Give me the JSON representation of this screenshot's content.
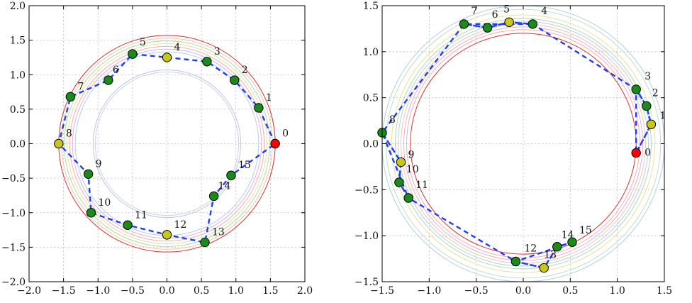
{
  "chart_data": [
    {
      "type": "scatter",
      "title": "",
      "xlabel": "",
      "ylabel": "",
      "xlim": [
        -2.0,
        2.0
      ],
      "ylim": [
        -2.0,
        2.0
      ],
      "xticks": [
        "−2.0",
        "−1.5",
        "−1.0",
        "−0.5",
        "0.0",
        "0.5",
        "1.0",
        "1.5",
        "2.0"
      ],
      "yticks": [
        "−2.0",
        "−1.5",
        "−1.0",
        "−0.5",
        "0.0",
        "0.5",
        "1.0",
        "1.5",
        "2.0"
      ],
      "grid": true,
      "colors": {
        "start": "#ff0000",
        "key": "#c8c81a",
        "normal": "#1a8a1a",
        "path": "#1f3df2"
      },
      "reference_circles": [
        {
          "radius": 1.57,
          "color": "#e03030"
        },
        {
          "radius": 1.53,
          "color": "#f2c8a0"
        },
        {
          "radius": 1.49,
          "color": "#b0d8b0"
        },
        {
          "radius": 1.45,
          "color": "#e8e0a0"
        },
        {
          "radius": 1.41,
          "color": "#f0b0b0"
        },
        {
          "radius": 1.37,
          "color": "#e0b0e0"
        },
        {
          "radius": 1.33,
          "color": "#b0d0f0"
        },
        {
          "radius": 1.07,
          "color": "#b8c8e0"
        },
        {
          "radius": 1.04,
          "color": "#c8d4e8"
        }
      ],
      "points": [
        {
          "label": "0",
          "x": 1.57,
          "y": 0.0,
          "kind": "start"
        },
        {
          "label": "1",
          "x": 1.33,
          "y": 0.52,
          "kind": "normal"
        },
        {
          "label": "2",
          "x": 0.98,
          "y": 0.92,
          "kind": "normal"
        },
        {
          "label": "3",
          "x": 0.58,
          "y": 1.19,
          "kind": "normal"
        },
        {
          "label": "4",
          "x": 0.0,
          "y": 1.25,
          "kind": "key"
        },
        {
          "label": "5",
          "x": -0.5,
          "y": 1.3,
          "kind": "normal"
        },
        {
          "label": "6",
          "x": -0.85,
          "y": 0.92,
          "kind": "normal"
        },
        {
          "label": "7",
          "x": -1.4,
          "y": 0.68,
          "kind": "normal"
        },
        {
          "label": "8",
          "x": -1.57,
          "y": 0.0,
          "kind": "key"
        },
        {
          "label": "9",
          "x": -1.14,
          "y": -0.44,
          "kind": "normal"
        },
        {
          "label": "10",
          "x": -1.1,
          "y": -1.0,
          "kind": "normal"
        },
        {
          "label": "11",
          "x": -0.57,
          "y": -1.18,
          "kind": "normal"
        },
        {
          "label": "12",
          "x": 0.0,
          "y": -1.32,
          "kind": "key"
        },
        {
          "label": "13",
          "x": 0.55,
          "y": -1.43,
          "kind": "normal"
        },
        {
          "label": "14",
          "x": 0.68,
          "y": -0.76,
          "kind": "normal"
        },
        {
          "label": "15",
          "x": 0.93,
          "y": -0.46,
          "kind": "normal"
        }
      ],
      "path_order": [
        "0",
        "1",
        "2",
        "3",
        "4",
        "5",
        "6",
        "7",
        "8",
        "9",
        "10",
        "11",
        "12",
        "13",
        "14",
        "15",
        "0"
      ]
    },
    {
      "type": "scatter",
      "title": "",
      "xlabel": "",
      "ylabel": "",
      "xlim": [
        -1.5,
        1.5
      ],
      "ylim": [
        -1.5,
        1.5
      ],
      "xticks": [
        "−1.5",
        "−1.0",
        "−0.5",
        "0.0",
        "0.5",
        "1.0",
        "1.5"
      ],
      "yticks": [
        "−1.5",
        "−1.0",
        "−0.5",
        "0.0",
        "0.5",
        "1.0",
        "1.5"
      ],
      "grid": true,
      "colors": {
        "start": "#ff0000",
        "key": "#c8c81a",
        "normal": "#1a8a1a",
        "path": "#1f3df2"
      },
      "reference_circles": [
        {
          "radius": 1.2,
          "color": "#e03030"
        },
        {
          "radius": 1.24,
          "color": "#f0b0b0"
        },
        {
          "radius": 1.27,
          "color": "#e0b0e0"
        },
        {
          "radius": 1.3,
          "color": "#f2c8a0"
        },
        {
          "radius": 1.33,
          "color": "#b0d0f0"
        },
        {
          "radius": 1.36,
          "color": "#b0d8b0"
        },
        {
          "radius": 1.4,
          "color": "#e8e0a0"
        },
        {
          "radius": 1.46,
          "color": "#c0e0c0"
        },
        {
          "radius": 1.5,
          "color": "#b0d0e0"
        }
      ],
      "points": [
        {
          "label": "0",
          "x": 1.2,
          "y": -0.1,
          "kind": "start"
        },
        {
          "label": "1",
          "x": 1.36,
          "y": 0.21,
          "kind": "key"
        },
        {
          "label": "2",
          "x": 1.31,
          "y": 0.41,
          "kind": "normal"
        },
        {
          "label": "3",
          "x": 1.2,
          "y": 0.59,
          "kind": "normal"
        },
        {
          "label": "4",
          "x": 0.1,
          "y": 1.3,
          "kind": "normal"
        },
        {
          "label": "5",
          "x": -0.15,
          "y": 1.32,
          "kind": "key"
        },
        {
          "label": "6",
          "x": -0.38,
          "y": 1.26,
          "kind": "normal"
        },
        {
          "label": "7",
          "x": -0.63,
          "y": 1.3,
          "kind": "normal"
        },
        {
          "label": "8",
          "x": -1.5,
          "y": 0.12,
          "kind": "normal"
        },
        {
          "label": "9",
          "x": -1.3,
          "y": -0.2,
          "kind": "key"
        },
        {
          "label": "10",
          "x": -1.32,
          "y": -0.42,
          "kind": "normal"
        },
        {
          "label": "11",
          "x": -1.22,
          "y": -0.59,
          "kind": "normal"
        },
        {
          "label": "12",
          "x": -0.08,
          "y": -1.28,
          "kind": "normal"
        },
        {
          "label": "13",
          "x": 0.22,
          "y": -1.35,
          "kind": "key"
        },
        {
          "label": "14",
          "x": 0.36,
          "y": -1.12,
          "kind": "normal"
        },
        {
          "label": "15",
          "x": 0.52,
          "y": -1.07,
          "kind": "normal"
        }
      ],
      "path_order": [
        "0",
        "1",
        "2",
        "3",
        "0",
        "1",
        "2",
        "3",
        "4",
        "5",
        "6",
        "7",
        "4",
        "5",
        "6",
        "7",
        "8",
        "9",
        "10",
        "11",
        "8",
        "9",
        "10",
        "11",
        "12",
        "13",
        "14",
        "15",
        "12",
        "13",
        "14",
        "15"
      ]
    }
  ]
}
